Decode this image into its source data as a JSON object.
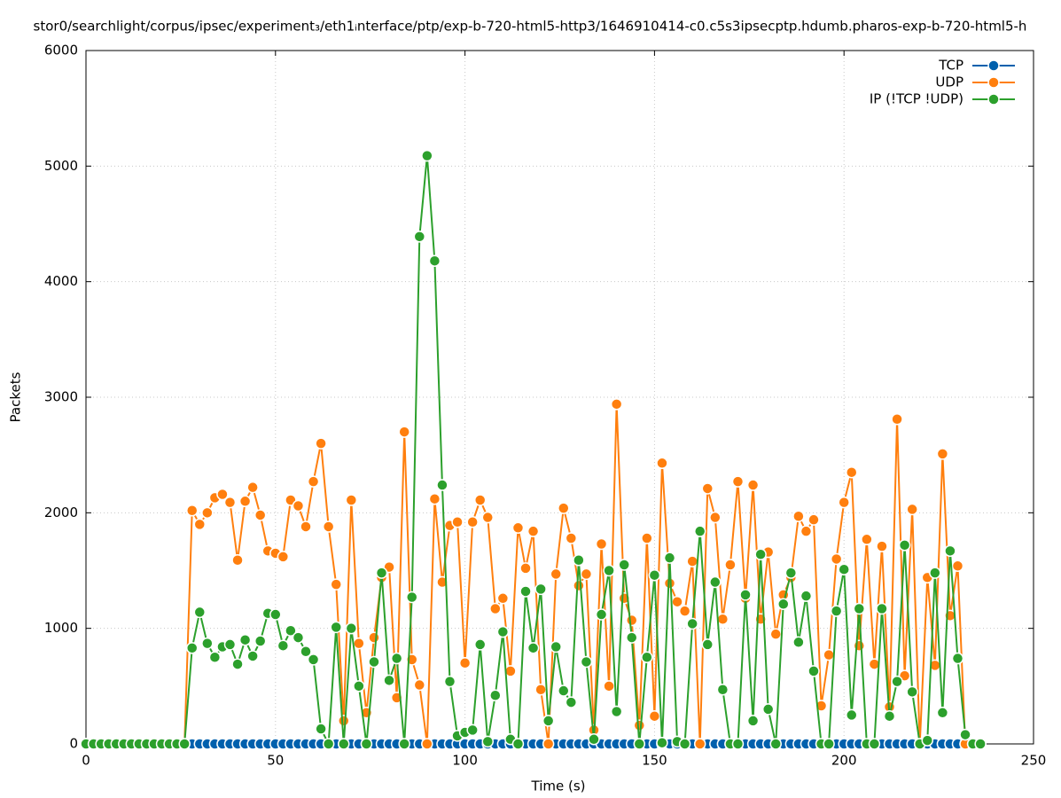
{
  "chart_data": {
    "type": "line",
    "title": "stor0/searchlight/corpus/ipsec/experiment₃/eth1ᵢnterface/ptp/exp-b-720-html5-http3/1646910414-c0.c5s3ipsecptp.hdumb.pharos-exp-b-720-html5-h",
    "x_label": "Time (s)",
    "y_label": "Packets",
    "x": [
      0,
      2,
      4,
      6,
      8,
      10,
      12,
      14,
      16,
      18,
      20,
      22,
      24,
      26,
      28,
      30,
      32,
      34,
      36,
      38,
      40,
      42,
      44,
      46,
      48,
      50,
      52,
      54,
      56,
      58,
      60,
      62,
      64,
      66,
      68,
      70,
      72,
      74,
      76,
      78,
      80,
      82,
      84,
      86,
      88,
      90,
      92,
      94,
      96,
      98,
      100,
      102,
      104,
      106,
      108,
      110,
      112,
      114,
      116,
      118,
      120,
      122,
      124,
      126,
      128,
      130,
      132,
      134,
      136,
      138,
      140,
      142,
      144,
      146,
      148,
      150,
      152,
      154,
      156,
      158,
      160,
      162,
      164,
      166,
      168,
      170,
      172,
      174,
      176,
      178,
      180,
      182,
      184,
      186,
      188,
      190,
      192,
      194,
      196,
      198,
      200,
      202,
      204,
      206,
      208,
      210,
      212,
      214,
      216,
      218,
      220,
      222,
      224,
      226,
      228,
      230,
      232,
      234,
      236
    ],
    "series": [
      {
        "name": "TCP",
        "color": "#0060ad",
        "values": [
          0,
          0,
          0,
          0,
          0,
          0,
          0,
          0,
          0,
          0,
          0,
          0,
          0,
          0,
          0,
          0,
          0,
          0,
          0,
          0,
          0,
          0,
          0,
          0,
          0,
          0,
          0,
          0,
          0,
          0,
          0,
          0,
          0,
          0,
          0,
          0,
          0,
          0,
          0,
          0,
          0,
          0,
          0,
          0,
          0,
          0,
          0,
          0,
          0,
          0,
          0,
          0,
          0,
          0,
          0,
          0,
          0,
          0,
          0,
          0,
          0,
          0,
          0,
          0,
          0,
          0,
          0,
          0,
          0,
          0,
          0,
          0,
          0,
          0,
          0,
          0,
          0,
          0,
          0,
          0,
          0,
          0,
          0,
          0,
          0,
          0,
          0,
          0,
          0,
          0,
          0,
          0,
          0,
          0,
          0,
          0,
          0,
          0,
          0,
          0,
          0,
          0,
          0,
          0,
          0,
          0,
          0,
          0,
          0,
          0,
          0,
          0,
          0,
          0,
          0,
          0,
          0,
          0,
          0
        ]
      },
      {
        "name": "UDP",
        "color": "#ff7f0e",
        "values": [
          0,
          0,
          0,
          0,
          0,
          0,
          0,
          0,
          0,
          0,
          0,
          0,
          0,
          0,
          2020,
          1900,
          2000,
          2130,
          2160,
          2090,
          1590,
          2100,
          2220,
          1980,
          1670,
          1650,
          1620,
          2110,
          2060,
          1880,
          2270,
          2600,
          1880,
          1380,
          200,
          2110,
          870,
          270,
          920,
          1440,
          1530,
          400,
          2700,
          730,
          510,
          0,
          2120,
          1400,
          1890,
          1920,
          700,
          1920,
          2110,
          1960,
          1170,
          1260,
          630,
          1870,
          1520,
          1840,
          470,
          0,
          1470,
          2040,
          1780,
          1370,
          1470,
          120,
          1730,
          500,
          2940,
          1260,
          1070,
          160,
          1780,
          240,
          2430,
          1390,
          1230,
          1150,
          1580,
          0,
          2210,
          1960,
          1080,
          1550,
          2270,
          1260,
          2240,
          1080,
          1660,
          950,
          1290,
          1440,
          1970,
          1840,
          1940,
          330,
          770,
          1600,
          2090,
          2350,
          850,
          1770,
          690,
          1710,
          320,
          2810,
          590,
          2030,
          0,
          1440,
          680,
          2510,
          1110,
          1540,
          0,
          0,
          0
        ]
      },
      {
        "name": "IP (!TCP  !UDP)",
        "color": "#2ca02c",
        "values": [
          0,
          0,
          0,
          0,
          0,
          0,
          0,
          0,
          0,
          0,
          0,
          0,
          0,
          0,
          830,
          1140,
          870,
          750,
          840,
          860,
          690,
          900,
          760,
          890,
          1130,
          1120,
          850,
          980,
          920,
          800,
          730,
          130,
          0,
          1010,
          0,
          1000,
          500,
          0,
          710,
          1480,
          550,
          740,
          0,
          1270,
          4390,
          5090,
          4180,
          2240,
          540,
          70,
          100,
          120,
          860,
          20,
          420,
          970,
          40,
          0,
          1320,
          830,
          1340,
          200,
          840,
          460,
          360,
          1590,
          710,
          40,
          1120,
          1500,
          280,
          1550,
          920,
          0,
          750,
          1460,
          10,
          1610,
          20,
          0,
          1040,
          1840,
          860,
          1400,
          470,
          0,
          0,
          1290,
          200,
          1640,
          300,
          0,
          1210,
          1480,
          880,
          1280,
          630,
          0,
          0,
          1150,
          1510,
          250,
          1170,
          0,
          0,
          1170,
          240,
          540,
          1720,
          450,
          0,
          30,
          1480,
          270,
          1670,
          740,
          80,
          0,
          0
        ]
      }
    ],
    "xlim": [
      0,
      250
    ],
    "xticks": [
      0,
      50,
      100,
      150,
      200,
      250
    ],
    "ylim": [
      0,
      6000
    ],
    "yticks": [
      0,
      1000,
      2000,
      3000,
      4000,
      5000,
      6000
    ],
    "grid": true,
    "legend": "top-right"
  }
}
